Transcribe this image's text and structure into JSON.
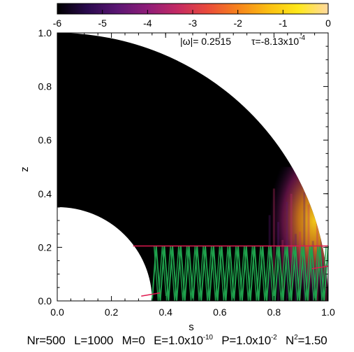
{
  "chart_data": {
    "type": "heatmap",
    "title": "",
    "xlabel": "s",
    "ylabel": "z",
    "xlim": [
      0.0,
      1.0
    ],
    "ylim": [
      0.0,
      1.0
    ],
    "x_ticks": [
      "0.0",
      "0.2",
      "0.4",
      "0.6",
      "0.8",
      "1.0"
    ],
    "y_ticks": [
      "0.0",
      "0.2",
      "0.4",
      "0.6",
      "0.8",
      "1.0"
    ],
    "colorbar": {
      "range": [
        -6,
        0
      ],
      "ticks": [
        "-6",
        "-5",
        "-4",
        "-3",
        "-2",
        "-1",
        "0"
      ],
      "colors": [
        "#000000",
        "#2a0a4e",
        "#5b1673",
        "#8f1d78",
        "#c42a63",
        "#ea4b3a",
        "#f7831c",
        "#fbbe12",
        "#ffe81a",
        "#ffd9a0"
      ]
    },
    "domain": {
      "outer_radius": 1.0,
      "inner_radius": 0.35,
      "critical_latitude_z": 0.205
    },
    "annotations": {
      "omega": "|ω|= 0.2515",
      "tau": "τ=-8.13x10",
      "tau_exp": "-4"
    },
    "ray_paths": {
      "color": "#1fa24d",
      "boundary_line_color": "#e0194f",
      "s_start": 0.35,
      "s_end": 1.0,
      "z_max": 0.205,
      "segments": 43
    },
    "caption": {
      "nr": "Nr=500",
      "l": "L=1000",
      "m": "M=0",
      "e_base": "E=1.0x10",
      "e_exp": "-10",
      "p_base": "P=1.0x10",
      "p_exp": "-2",
      "n_base": "N",
      "n_exp": "2",
      "n_val": "=1.50"
    }
  }
}
